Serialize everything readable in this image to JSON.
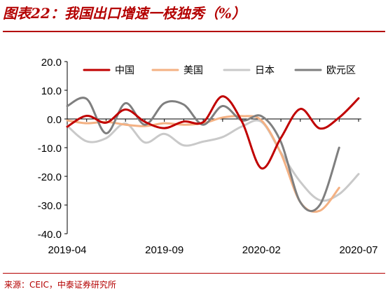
{
  "header": {
    "title": "图表22：我国出口增速一枝独秀（%）"
  },
  "footer": {
    "source": "来源：CEIC，中泰证券研究所"
  },
  "chart_data": {
    "type": "line",
    "title": "图表22：我国出口增速一枝独秀（%）",
    "xlabel": "",
    "ylabel": "",
    "x": [
      "2019-04",
      "2019-05",
      "2019-06",
      "2019-07",
      "2019-08",
      "2019-09",
      "2019-10",
      "2019-11",
      "2019-12",
      "2020-01",
      "2020-02",
      "2020-03",
      "2020-04",
      "2020-05",
      "2020-06",
      "2020-07"
    ],
    "x_tick_labels": [
      "2019-04",
      "2019-09",
      "2020-02",
      "2020-07"
    ],
    "y_ticks": [
      20,
      10,
      0,
      -10,
      -20,
      -30,
      -40
    ],
    "y_tick_labels": [
      "20.0",
      "10.0",
      "0.0",
      "-10.0",
      "-20.0",
      "-30.0",
      "-40.0"
    ],
    "ylim": [
      -40,
      20
    ],
    "grid": false,
    "legend_position": "top",
    "series": [
      {
        "name": "中国",
        "color": "#c00000",
        "values": [
          -2.7,
          1.1,
          -1.3,
          3.3,
          -1.0,
          -3.2,
          -0.9,
          -1.1,
          7.9,
          -1.0,
          -17.2,
          -6.6,
          3.5,
          -3.3,
          0.5,
          7.2
        ]
      },
      {
        "name": "美国",
        "color": "#f4b183",
        "values": [
          -0.5,
          -1.5,
          -1.0,
          -2.0,
          -2.5,
          -1.5,
          -2.0,
          -1.5,
          0.5,
          1.0,
          -0.5,
          -12.0,
          -29.0,
          -32.0,
          -24.0,
          null
        ]
      },
      {
        "name": "日本",
        "color": "#c9c9c9",
        "values": [
          -2.4,
          -7.8,
          -6.7,
          -1.6,
          -8.2,
          -5.2,
          -9.2,
          -7.9,
          -6.3,
          -2.6,
          -1.0,
          -11.7,
          -21.9,
          -28.3,
          -26.2,
          -19.2
        ]
      },
      {
        "name": "欧元区",
        "color": "#7f7f7f",
        "values": [
          4.5,
          7.0,
          -5.0,
          5.5,
          -2.0,
          5.5,
          5.0,
          -2.0,
          4.5,
          -0.5,
          1.0,
          -8.0,
          -29.0,
          -30.0,
          -10.0,
          null
        ]
      }
    ]
  }
}
